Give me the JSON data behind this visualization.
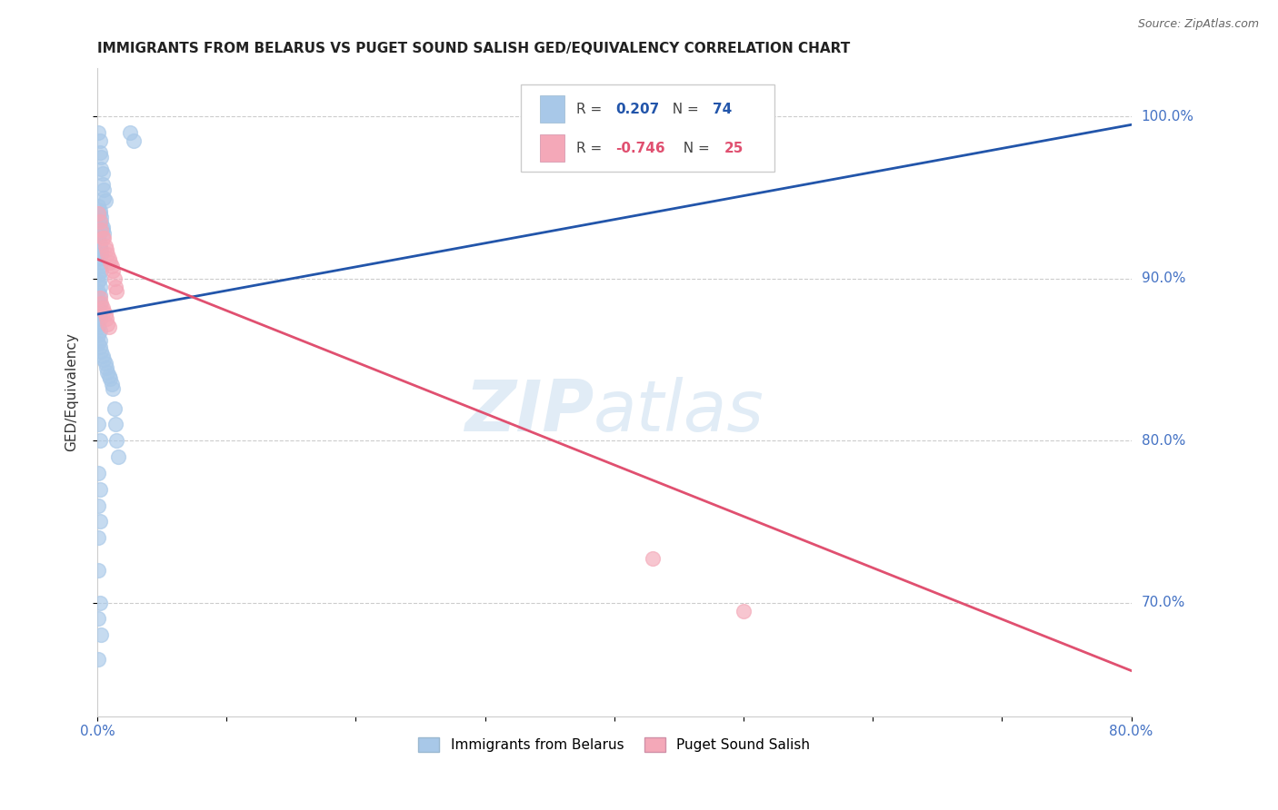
{
  "title": "IMMIGRANTS FROM BELARUS VS PUGET SOUND SALISH GED/EQUIVALENCY CORRELATION CHART",
  "source": "Source: ZipAtlas.com",
  "ylabel": "GED/Equivalency",
  "legend_label1": "Immigrants from Belarus",
  "legend_label2": "Puget Sound Salish",
  "R1": 0.207,
  "N1": 74,
  "R2": -0.746,
  "N2": 25,
  "xlim": [
    0.0,
    0.8
  ],
  "ylim": [
    0.63,
    1.03
  ],
  "yticks": [
    0.7,
    0.8,
    0.9,
    1.0
  ],
  "ytick_labels": [
    "70.0%",
    "80.0%",
    "90.0%",
    "100.0%"
  ],
  "xtick_left": "0.0%",
  "xtick_right": "80.0%",
  "blue_color": "#a8c8e8",
  "pink_color": "#f4a8b8",
  "blue_line_color": "#2255aa",
  "pink_line_color": "#e05070",
  "blue_line_x": [
    0.0,
    0.8
  ],
  "blue_line_y": [
    0.878,
    0.995
  ],
  "pink_line_x": [
    0.0,
    0.8
  ],
  "pink_line_y": [
    0.912,
    0.658
  ],
  "blue_scatter_x": [
    0.001,
    0.002,
    0.002,
    0.003,
    0.003,
    0.004,
    0.004,
    0.005,
    0.005,
    0.006,
    0.001,
    0.002,
    0.002,
    0.003,
    0.003,
    0.004,
    0.004,
    0.005,
    0.001,
    0.002,
    0.002,
    0.003,
    0.003,
    0.001,
    0.002,
    0.002,
    0.003,
    0.001,
    0.002,
    0.001,
    0.002,
    0.001,
    0.002,
    0.001,
    0.002,
    0.001,
    0.002,
    0.001,
    0.002,
    0.001,
    0.001,
    0.002,
    0.001,
    0.002,
    0.001,
    0.002,
    0.003,
    0.004,
    0.005,
    0.006,
    0.007,
    0.008,
    0.009,
    0.01,
    0.011,
    0.012,
    0.013,
    0.014,
    0.015,
    0.016,
    0.001,
    0.002,
    0.001,
    0.002,
    0.001,
    0.002,
    0.003,
    0.001,
    0.025,
    0.028,
    0.001,
    0.002,
    0.001,
    0.001
  ],
  "blue_scatter_y": [
    0.99,
    0.985,
    0.978,
    0.975,
    0.968,
    0.965,
    0.958,
    0.955,
    0.95,
    0.948,
    0.945,
    0.942,
    0.94,
    0.938,
    0.935,
    0.932,
    0.93,
    0.928,
    0.925,
    0.922,
    0.92,
    0.918,
    0.915,
    0.912,
    0.91,
    0.908,
    0.905,
    0.902,
    0.9,
    0.898,
    0.895,
    0.892,
    0.89,
    0.888,
    0.885,
    0.882,
    0.88,
    0.878,
    0.875,
    0.872,
    0.87,
    0.868,
    0.865,
    0.862,
    0.86,
    0.858,
    0.855,
    0.852,
    0.85,
    0.848,
    0.845,
    0.842,
    0.84,
    0.838,
    0.835,
    0.832,
    0.82,
    0.81,
    0.8,
    0.79,
    0.78,
    0.77,
    0.76,
    0.75,
    0.72,
    0.7,
    0.68,
    0.665,
    0.99,
    0.985,
    0.81,
    0.8,
    0.74,
    0.69
  ],
  "pink_scatter_x": [
    0.001,
    0.002,
    0.003,
    0.004,
    0.005,
    0.006,
    0.007,
    0.008,
    0.009,
    0.01,
    0.011,
    0.012,
    0.013,
    0.014,
    0.015,
    0.002,
    0.003,
    0.004,
    0.005,
    0.006,
    0.007,
    0.008,
    0.009,
    0.5,
    0.43
  ],
  "pink_scatter_y": [
    0.94,
    0.935,
    0.93,
    0.925,
    0.925,
    0.92,
    0.918,
    0.915,
    0.912,
    0.91,
    0.908,
    0.905,
    0.9,
    0.895,
    0.892,
    0.888,
    0.885,
    0.882,
    0.88,
    0.878,
    0.875,
    0.872,
    0.87,
    0.695,
    0.727
  ]
}
